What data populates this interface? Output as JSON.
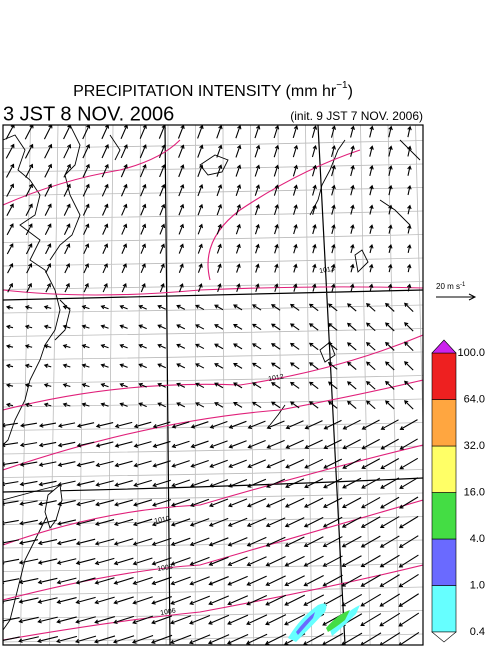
{
  "title": "PRECIPITATION INTENSITY (mm hr",
  "title_sup": "−1",
  "title_end": ")",
  "valid_time": "3 JST 8 NOV. 2006",
  "init_time": "(init. 9 JST 7 NOV. 2006)",
  "vector_scale": "20 m s",
  "vector_scale_sup": "-1",
  "isobar_labels": [
    1013,
    1012,
    1010,
    1008,
    1006
  ],
  "colorbar": {
    "bounds": [
      {
        "value": 0.4,
        "label": "0.4"
      },
      {
        "value": 1,
        "label": "1.0"
      },
      {
        "value": 4,
        "label": "4.0"
      },
      {
        "value": 16,
        "label": "16.0"
      },
      {
        "value": 32,
        "label": "32.0"
      },
      {
        "value": 64,
        "label": "64.0"
      },
      {
        "value": 100,
        "label": "100.0"
      }
    ],
    "colors": [
      "#66ffff",
      "#6a6aff",
      "#44dd44",
      "#ffff66",
      "#ffa640",
      "#ee2020"
    ],
    "over_color": "#cc22ee",
    "under_color": "#ffffff"
  }
}
